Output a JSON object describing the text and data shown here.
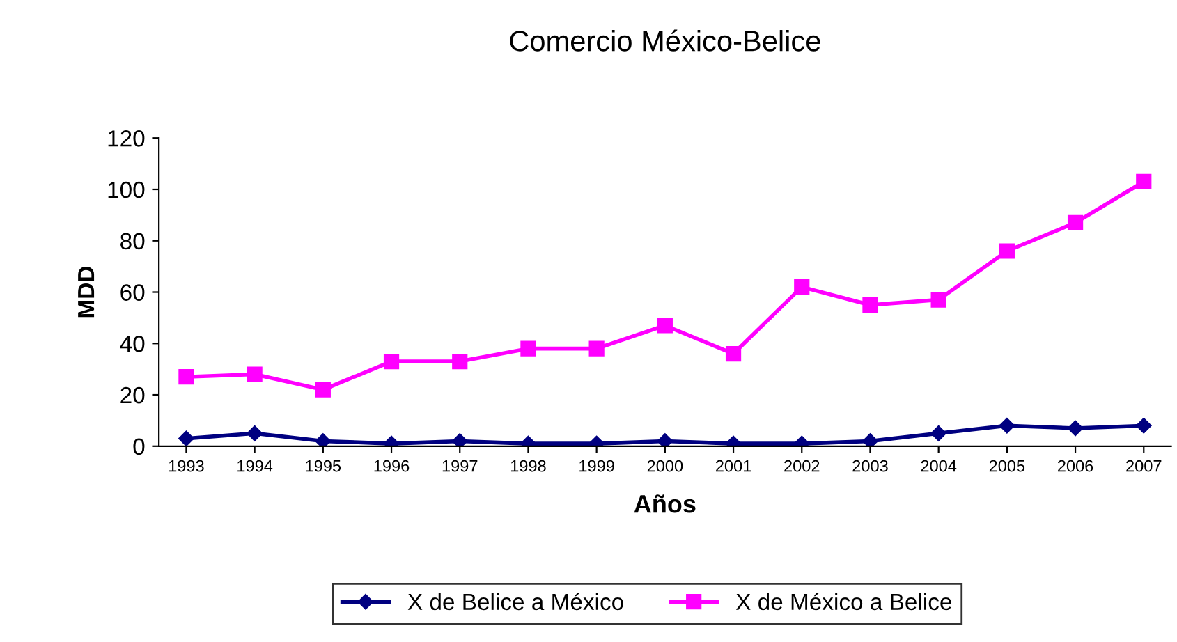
{
  "chart_data": {
    "type": "line",
    "title": "Comercio México-Belice",
    "xlabel": "Años",
    "ylabel": "MDD",
    "categories": [
      "1993",
      "1994",
      "1995",
      "1996",
      "1997",
      "1998",
      "1999",
      "2000",
      "2001",
      "2002",
      "2003",
      "2004",
      "2005",
      "2006",
      "2007"
    ],
    "series": [
      {
        "name": "X de Belice a México",
        "color": "#000080",
        "marker": "diamond",
        "values": [
          3,
          5,
          2,
          1,
          2,
          1,
          1,
          2,
          1,
          1,
          2,
          5,
          8,
          7,
          8
        ]
      },
      {
        "name": "X de México a Belice",
        "color": "#ff00ff",
        "marker": "square",
        "values": [
          27,
          28,
          22,
          33,
          33,
          38,
          38,
          47,
          36,
          62,
          55,
          57,
          76,
          87,
          103
        ]
      }
    ],
    "ylim": [
      0,
      120
    ],
    "yticks": [
      0,
      20,
      40,
      60,
      80,
      100,
      120
    ],
    "grid": false,
    "legend": "bottom",
    "line_style": "solid"
  }
}
